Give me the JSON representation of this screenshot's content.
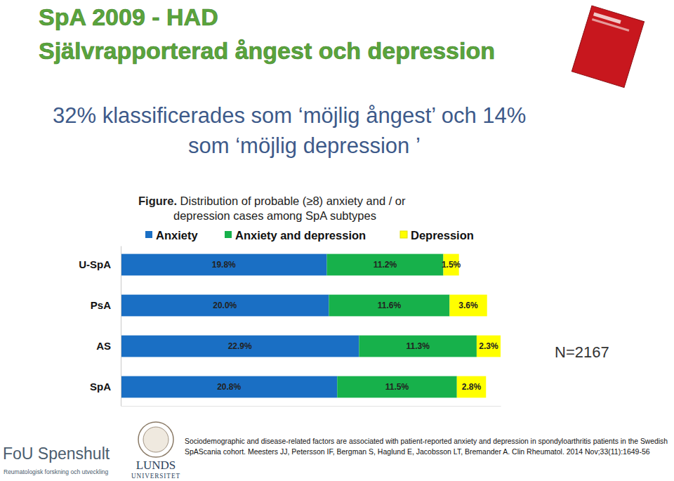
{
  "chart_data": {
    "type": "bar",
    "orientation": "horizontal",
    "stacked": true,
    "data_labels": true,
    "tick_labels": false,
    "grid": false,
    "legend": "top",
    "title": [
      "Figure. Distribution of probable (≥8) anxiety and / or",
      "depression cases among SpA subtypes"
    ],
    "categories": [
      "U-SpA",
      "PsA",
      "AS",
      "SpA"
    ],
    "xlim": [
      0,
      36.5
    ],
    "series": [
      {
        "name": "Anxiety",
        "color": "#1a6fc4",
        "values": [
          19.8,
          20.0,
          22.9,
          20.8
        ],
        "value_labels": [
          "19.8%",
          "20.0%",
          "22.9%",
          "20.8%"
        ]
      },
      {
        "name": "Anxiety and depression",
        "color": "#17b14b",
        "values": [
          11.2,
          11.6,
          11.3,
          11.5
        ],
        "value_labels": [
          "11.2%",
          "11.6%",
          "11.3%",
          "11.5%"
        ]
      },
      {
        "name": "Depression",
        "color": "#ffff00",
        "values": [
          1.5,
          3.6,
          2.3,
          2.8
        ],
        "value_labels": [
          "1.5%",
          "3.6%",
          "2.3%",
          "2.8%"
        ]
      }
    ],
    "annotations": [
      "N=2167"
    ]
  },
  "slide": {
    "heading": [
      "SpA 2009 - HAD",
      "Självrapporterad ångest och depression"
    ],
    "subtitle": [
      "32% klassificerades som  ‘möjlig ångest’ och 14%",
      "som ‘möjlig depression ’"
    ],
    "citation": [
      "Sociodemographic and disease-related factors are associated with patient-reported anxiety and depression in spondyloarthritis patients in the Swedish",
      "SpAScania cohort. Meesters JJ, Petersson IF, Bergman S, Haglund E, Jacobsson LT, Bremander A. Clin Rheumatol. 2014 Nov;33(11):1649-56"
    ],
    "logo_left": [
      "FoU Spenshult",
      "Reumatologisk forskning och utveckling"
    ],
    "logo_right": [
      "LUNDS",
      "UNIVERSITET"
    ]
  }
}
